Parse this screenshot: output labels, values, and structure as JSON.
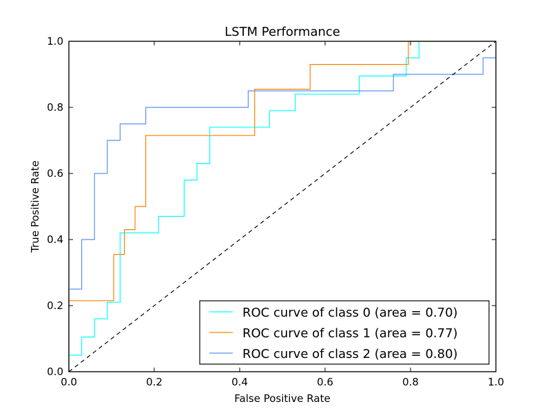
{
  "chart_data": {
    "type": "line",
    "title": "LSTM Performance",
    "xlabel": "False Positive Rate",
    "ylabel": "True Positive Rate",
    "xlim": [
      0.0,
      1.0
    ],
    "ylim": [
      0.0,
      1.0
    ],
    "xticks": [
      "0.0",
      "0.2",
      "0.4",
      "0.6",
      "0.8",
      "1.0"
    ],
    "yticks": [
      "0.0",
      "0.2",
      "0.4",
      "0.6",
      "0.8",
      "1.0"
    ],
    "grid": false,
    "legend_position": "lower-right",
    "reference_line": {
      "style": "dashed",
      "color": "#000000",
      "x": [
        0,
        1
      ],
      "y": [
        0,
        1
      ]
    },
    "series": [
      {
        "name": "ROC curve of class 0 (area = 0.70)",
        "color": "#00ffff",
        "x": [
          0.0,
          0.0,
          0.03,
          0.03,
          0.06,
          0.06,
          0.09,
          0.09,
          0.12,
          0.12,
          0.21,
          0.21,
          0.27,
          0.27,
          0.3,
          0.3,
          0.33,
          0.33,
          0.47,
          0.47,
          0.53,
          0.53,
          0.68,
          0.68,
          0.79,
          0.79,
          0.82,
          0.82,
          1.0
        ],
        "y": [
          0.0,
          0.05,
          0.05,
          0.105,
          0.105,
          0.16,
          0.16,
          0.21,
          0.21,
          0.42,
          0.42,
          0.47,
          0.47,
          0.58,
          0.58,
          0.63,
          0.63,
          0.74,
          0.74,
          0.79,
          0.79,
          0.84,
          0.84,
          0.895,
          0.895,
          0.95,
          0.95,
          1.0,
          1.0
        ]
      },
      {
        "name": "ROC curve of class 1 (area = 0.77)",
        "color": "#ff8000",
        "x": [
          0.0,
          0.0,
          0.105,
          0.105,
          0.13,
          0.13,
          0.155,
          0.155,
          0.18,
          0.18,
          0.435,
          0.435,
          0.565,
          0.565,
          0.795,
          0.795,
          1.0
        ],
        "y": [
          0.0,
          0.215,
          0.215,
          0.355,
          0.355,
          0.43,
          0.43,
          0.5,
          0.5,
          0.715,
          0.715,
          0.855,
          0.855,
          0.93,
          0.93,
          1.0,
          1.0
        ]
      },
      {
        "name": "ROC curve of class 2 (area = 0.80)",
        "color": "#5b8ff2",
        "x": [
          0.0,
          0.0,
          0.03,
          0.03,
          0.06,
          0.06,
          0.09,
          0.09,
          0.12,
          0.12,
          0.18,
          0.18,
          0.42,
          0.42,
          0.76,
          0.76,
          0.97,
          0.97,
          1.0
        ],
        "y": [
          0.0,
          0.25,
          0.25,
          0.4,
          0.4,
          0.6,
          0.6,
          0.7,
          0.7,
          0.75,
          0.75,
          0.8,
          0.8,
          0.85,
          0.85,
          0.9,
          0.9,
          0.95,
          0.95
        ]
      }
    ]
  }
}
